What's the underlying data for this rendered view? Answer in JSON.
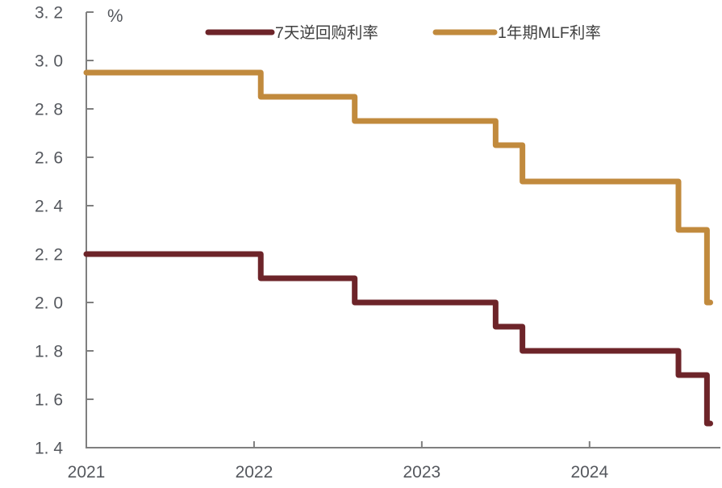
{
  "figure": {
    "unit_label": "%",
    "background": "#ffffff",
    "axis_color": "#7f7f7f",
    "tick_label_color": "#55585e",
    "legend_text_color": "#404040"
  },
  "legend": {
    "items": [
      {
        "label": "7天逆回购利率",
        "color": "#6D2429"
      },
      {
        "label": "1年期MLF利率",
        "color": "#C18A3D"
      }
    ]
  },
  "chart_data": {
    "type": "line",
    "line_style": "step-after",
    "title": "",
    "xlabel": "",
    "ylabel": "%",
    "grid": false,
    "legend_position": "top-center",
    "xlim": [
      2021,
      2024.78
    ],
    "ylim": [
      1.4,
      3.2
    ],
    "x_ticks": [
      {
        "x": 2021,
        "label": "2021"
      },
      {
        "x": 2022,
        "label": "2022"
      },
      {
        "x": 2023,
        "label": "2023"
      },
      {
        "x": 2024,
        "label": "2024"
      }
    ],
    "y_ticks": [
      {
        "y": 3.2,
        "label": "3. 2"
      },
      {
        "y": 3.0,
        "label": "3. 0"
      },
      {
        "y": 2.8,
        "label": "2. 8"
      },
      {
        "y": 2.6,
        "label": "2. 6"
      },
      {
        "y": 2.4,
        "label": "2. 4"
      },
      {
        "y": 2.2,
        "label": "2. 2"
      },
      {
        "y": 2.0,
        "label": "2. 0"
      },
      {
        "y": 1.8,
        "label": "1. 8"
      },
      {
        "y": 1.6,
        "label": "1. 6"
      },
      {
        "y": 1.4,
        "label": "1. 4"
      }
    ],
    "series": [
      {
        "name": "7天逆回购利率",
        "color": "#6D2429",
        "x_end": 2024.72,
        "points": [
          {
            "x": 2021.0,
            "y": 2.2
          },
          {
            "x": 2022.04,
            "y": 2.1
          },
          {
            "x": 2022.6,
            "y": 2.0
          },
          {
            "x": 2023.44,
            "y": 1.9
          },
          {
            "x": 2023.6,
            "y": 1.8
          },
          {
            "x": 2024.53,
            "y": 1.7
          },
          {
            "x": 2024.7,
            "y": 1.5
          }
        ]
      },
      {
        "name": "1年期MLF利率",
        "color": "#C18A3D",
        "x_end": 2024.72,
        "points": [
          {
            "x": 2021.0,
            "y": 2.95
          },
          {
            "x": 2022.04,
            "y": 2.85
          },
          {
            "x": 2022.6,
            "y": 2.75
          },
          {
            "x": 2023.44,
            "y": 2.65
          },
          {
            "x": 2023.6,
            "y": 2.5
          },
          {
            "x": 2024.53,
            "y": 2.3
          },
          {
            "x": 2024.7,
            "y": 2.0
          }
        ]
      }
    ]
  }
}
